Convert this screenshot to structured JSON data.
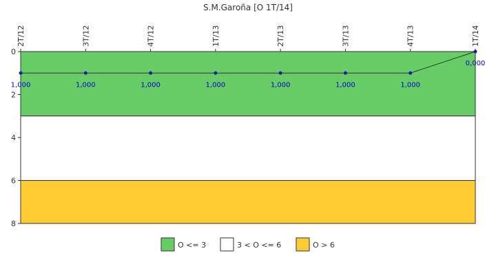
{
  "chart_data": {
    "type": "line",
    "title": "S.M.Garoña [O 1T/14]",
    "xlabel": "",
    "ylabel": "",
    "categories": [
      "2T/12",
      "3T/12",
      "4T/12",
      "1T/13",
      "2T/13",
      "3T/13",
      "4T/13",
      "1T/14"
    ],
    "series": [
      {
        "values": [
          1,
          1,
          1,
          1,
          1,
          1,
          1,
          0
        ],
        "data_labels": [
          "1,000",
          "1,000",
          "1,000",
          "1,000",
          "1,000",
          "1,000",
          "1,000",
          "0,000"
        ],
        "color": "#1a1aa6"
      }
    ],
    "ylim": [
      0,
      8
    ],
    "y_inverted": true,
    "y_ticks": [
      0,
      2,
      4,
      6,
      8
    ],
    "x_axis_position": "top",
    "grid": false,
    "bands": [
      {
        "from": 0,
        "to": 3,
        "color": "#66cc66",
        "label": "O <= 3"
      },
      {
        "from": 3,
        "to": 6,
        "color": "#ffffff",
        "label": "3 < O <= 6"
      },
      {
        "from": 6,
        "to": 8,
        "color": "#ffcc33",
        "label": "O > 6"
      }
    ],
    "legend_position": "bottom-center",
    "label_color": "#0000cc"
  }
}
